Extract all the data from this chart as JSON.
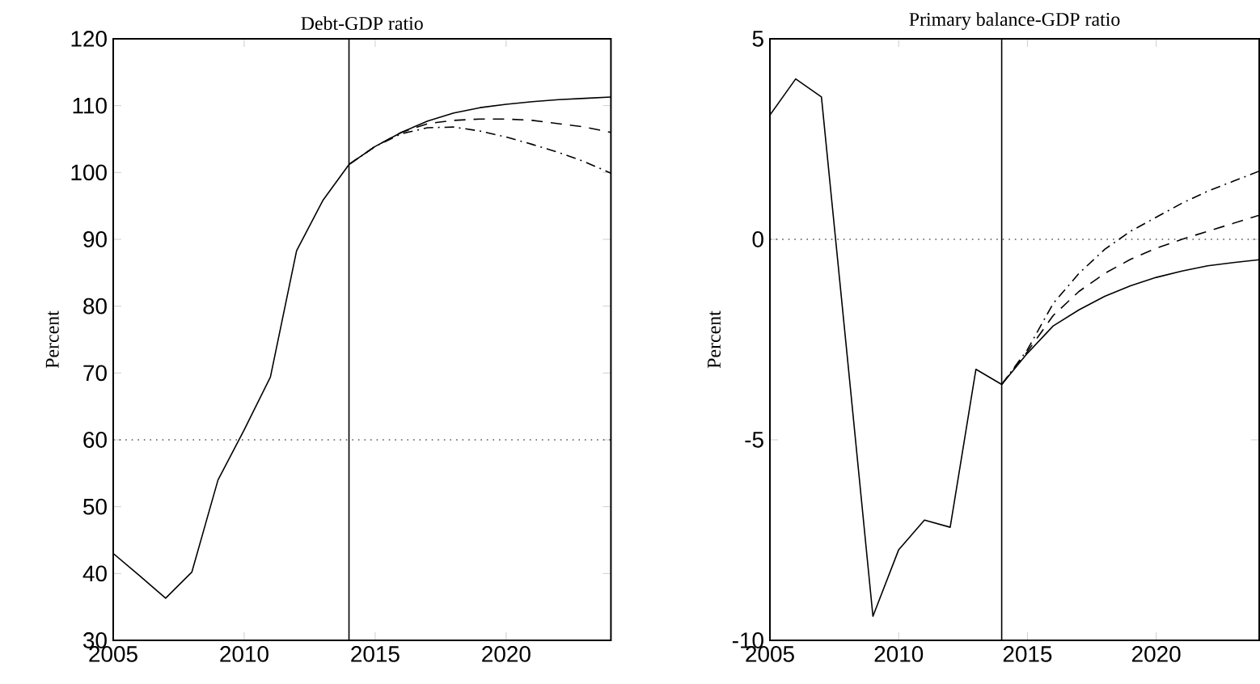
{
  "chart_data": [
    {
      "type": "line",
      "title": "Debt-GDP ratio",
      "ylabel": "Percent",
      "xlim": [
        2005,
        2024
      ],
      "xticks": [
        2005,
        2010,
        2015,
        2020
      ],
      "ylim": [
        30,
        120
      ],
      "yticks": [
        30,
        40,
        50,
        60,
        70,
        80,
        90,
        100,
        110,
        120
      ],
      "marker": "none",
      "series": [
        {
          "color": "#000000",
          "line_style": "solid",
          "x": [
            2005,
            2006,
            2007,
            2008,
            2009,
            2010,
            2011,
            2012,
            2013,
            2014,
            2015,
            2016,
            2017,
            2018,
            2019,
            2020,
            2021,
            2022,
            2023,
            2024
          ],
          "values": [
            43,
            39.7,
            36.3,
            40.2,
            54,
            61.5,
            69.4,
            88.3,
            95.8,
            101.2,
            103.9,
            106,
            107.7,
            108.9,
            109.7,
            110.2,
            110.6,
            110.9,
            111.1,
            111.3
          ]
        },
        {
          "color": "#000000",
          "line_style": "dashed",
          "x": [
            2014,
            2015,
            2016,
            2017,
            2018,
            2019,
            2020,
            2021,
            2022,
            2023,
            2024
          ],
          "values": [
            101.2,
            103.9,
            106,
            107.3,
            107.8,
            108,
            108,
            107.8,
            107.3,
            106.8,
            106
          ]
        },
        {
          "color": "#000000",
          "line_style": "dashdot",
          "x": [
            2014,
            2015,
            2016,
            2017,
            2018,
            2019,
            2020,
            2021,
            2022,
            2023,
            2024
          ],
          "values": [
            101.2,
            103.9,
            105.8,
            106.7,
            106.8,
            106.2,
            105.3,
            104.2,
            103,
            101.6,
            99.9
          ]
        }
      ],
      "ref_lines": [
        {
          "axis": "x",
          "value": 2014,
          "color": "#000000",
          "line_style": "solid"
        },
        {
          "axis": "y",
          "value": 60,
          "color": "#000000",
          "line_style": "dotted"
        }
      ]
    },
    {
      "type": "line",
      "title": "Primary balance-GDP ratio",
      "ylabel": "Percent",
      "xlim": [
        2005,
        2024
      ],
      "xticks": [
        2005,
        2010,
        2015,
        2020
      ],
      "ylim": [
        -10,
        5
      ],
      "yticks": [
        -10,
        -5,
        0,
        5
      ],
      "marker": "none",
      "series": [
        {
          "color": "#000000",
          "line_style": "solid",
          "x": [
            2005,
            2006,
            2007,
            2008,
            2009,
            2010,
            2011,
            2012,
            2013,
            2014,
            2015,
            2016,
            2017,
            2018,
            2019,
            2020,
            2021,
            2022,
            2023,
            2024
          ],
          "values": [
            3.1,
            4,
            3.55,
            -2.9,
            -9.4,
            -7.74,
            -7,
            -7.18,
            -3.24,
            -3.62,
            -2.84,
            -2.16,
            -1.76,
            -1.42,
            -1.16,
            -0.95,
            -0.79,
            -0.66,
            -0.58,
            -0.51
          ]
        },
        {
          "color": "#000000",
          "line_style": "dashed",
          "x": [
            2014,
            2015,
            2016,
            2017,
            2018,
            2019,
            2020,
            2021,
            2022,
            2023,
            2024
          ],
          "values": [
            -3.62,
            -2.8,
            -1.9,
            -1.3,
            -0.85,
            -0.5,
            -0.22,
            0,
            0.2,
            0.4,
            0.6
          ]
        },
        {
          "color": "#000000",
          "line_style": "dashdot",
          "x": [
            2014,
            2015,
            2016,
            2017,
            2018,
            2019,
            2020,
            2021,
            2022,
            2023,
            2024
          ],
          "values": [
            -3.62,
            -2.75,
            -1.6,
            -0.85,
            -0.25,
            0.2,
            0.55,
            0.9,
            1.2,
            1.45,
            1.7
          ]
        }
      ],
      "ref_lines": [
        {
          "axis": "x",
          "value": 2014,
          "color": "#000000",
          "line_style": "solid"
        },
        {
          "axis": "y",
          "value": 0,
          "color": "#000000",
          "line_style": "dotted"
        }
      ]
    }
  ]
}
